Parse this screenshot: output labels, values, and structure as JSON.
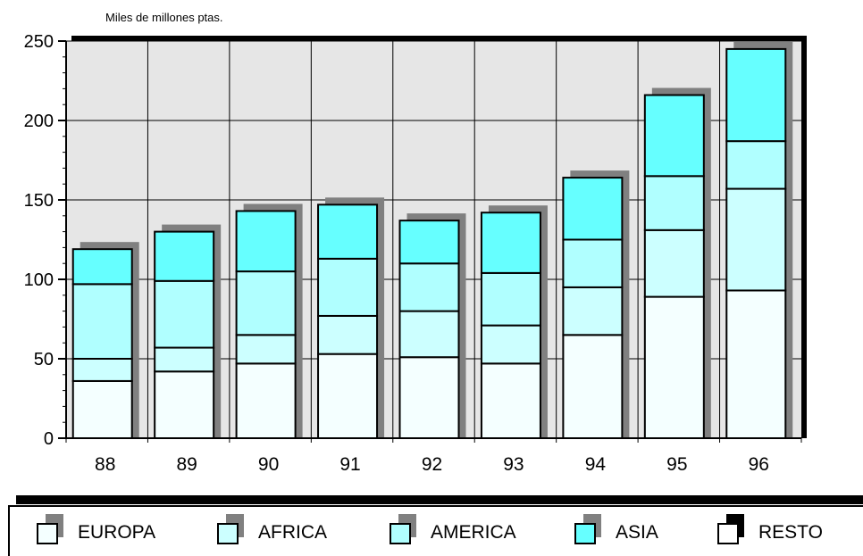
{
  "unit_label": "Miles de millones ptas.",
  "chart_data": {
    "type": "bar",
    "stacked": true,
    "categories": [
      "88",
      "89",
      "90",
      "91",
      "92",
      "93",
      "94",
      "95",
      "96"
    ],
    "series": [
      {
        "name": "EUROPA",
        "color": "#f4ffff",
        "values": [
          36,
          42,
          47,
          53,
          51,
          47,
          65,
          89,
          93
        ]
      },
      {
        "name": "AFRICA",
        "color": "#ccffff",
        "values": [
          14,
          15,
          18,
          24,
          29,
          24,
          30,
          42,
          64
        ]
      },
      {
        "name": "AMERICA",
        "color": "#b0ffff",
        "values": [
          47,
          42,
          40,
          36,
          30,
          33,
          30,
          34,
          30
        ]
      },
      {
        "name": "ASIA",
        "color": "#66ffff",
        "values": [
          22,
          31,
          38,
          34,
          27,
          38,
          39,
          51,
          58
        ]
      },
      {
        "name": "RESTO",
        "color": "#ffffff",
        "values": [
          0,
          0,
          0,
          0,
          0,
          0,
          0,
          0,
          0
        ]
      }
    ],
    "ylim": [
      0,
      250
    ],
    "yticks": [
      0,
      50,
      100,
      150,
      200,
      250
    ],
    "grid": true,
    "legend": "bottom",
    "plot_background": "#e6e6e6"
  }
}
